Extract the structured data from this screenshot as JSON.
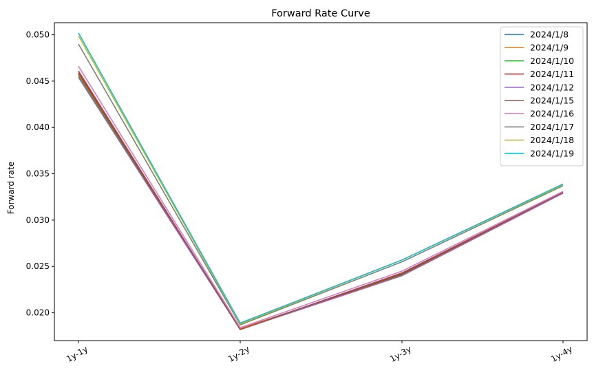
{
  "chart_data": {
    "type": "line",
    "title": "Forward Rate Curve",
    "xlabel": "",
    "ylabel": "Forward rate",
    "categories": [
      "1y-1y",
      "1y-2y",
      "1y-3y",
      "1y-4y"
    ],
    "ylim": [
      0.017,
      0.0513
    ],
    "yticks": [
      0.02,
      0.025,
      0.03,
      0.035,
      0.04,
      0.045,
      0.05
    ],
    "ytick_labels": [
      "0.020",
      "0.025",
      "0.030",
      "0.035",
      "0.040",
      "0.045",
      "0.050"
    ],
    "grid": false,
    "legend_position": "top-right",
    "series": [
      {
        "name": "2024/1/8",
        "color": "#1f77b4",
        "values": [
          0.0458,
          0.0183,
          0.0241,
          0.033
        ]
      },
      {
        "name": "2024/1/9",
        "color": "#ff7f0e",
        "values": [
          0.0457,
          0.0183,
          0.0241,
          0.033
        ]
      },
      {
        "name": "2024/1/10",
        "color": "#2ca02c",
        "values": [
          0.0456,
          0.0182,
          0.0241,
          0.033
        ]
      },
      {
        "name": "2024/1/11",
        "color": "#d62728",
        "values": [
          0.0459,
          0.0182,
          0.0242,
          0.033
        ]
      },
      {
        "name": "2024/1/12",
        "color": "#9467bd",
        "values": [
          0.0454,
          0.0182,
          0.024,
          0.0329
        ]
      },
      {
        "name": "2024/1/15",
        "color": "#8c564b",
        "values": [
          0.0461,
          0.0182,
          0.0243,
          0.033
        ]
      },
      {
        "name": "2024/1/16",
        "color": "#e377c2",
        "values": [
          0.0466,
          0.0184,
          0.0245,
          0.0331
        ]
      },
      {
        "name": "2024/1/17",
        "color": "#7f7f7f",
        "values": [
          0.049,
          0.0187,
          0.0255,
          0.0337
        ]
      },
      {
        "name": "2024/1/18",
        "color": "#bcbd22",
        "values": [
          0.0499,
          0.0188,
          0.0257,
          0.0338
        ]
      },
      {
        "name": "2024/1/19",
        "color": "#17becf",
        "values": [
          0.0502,
          0.0189,
          0.0257,
          0.0339
        ]
      }
    ]
  }
}
